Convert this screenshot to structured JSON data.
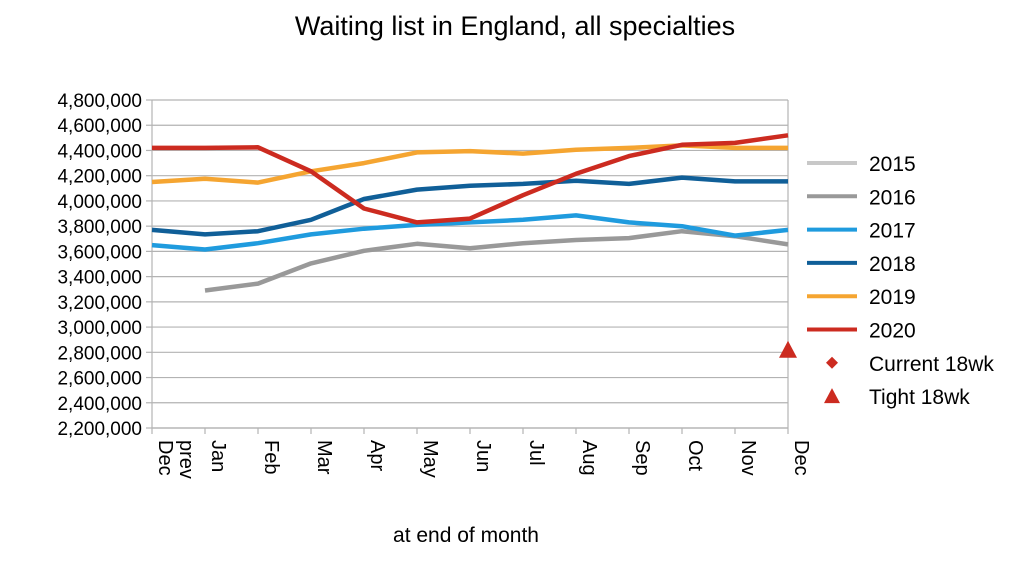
{
  "chart_data": {
    "type": "line",
    "title": "Waiting list in England, all specialties",
    "xlabel": "at end of month",
    "ylabel": "",
    "ylim": [
      2200000,
      4800000
    ],
    "ytick_step": 200000,
    "grid": true,
    "legend_position": "right",
    "categories": [
      "Dec prev",
      "Jan",
      "Feb",
      "Mar",
      "Apr",
      "May",
      "Jun",
      "Jul",
      "Aug",
      "Sep",
      "Oct",
      "Nov",
      "Dec"
    ],
    "series": [
      {
        "name": "2015",
        "color": "#c8c8c8",
        "values": [
          null,
          null,
          null,
          null,
          null,
          null,
          null,
          null,
          null,
          null,
          null,
          null,
          null
        ]
      },
      {
        "name": "2016",
        "color": "#999999",
        "values": [
          null,
          3290000,
          3345000,
          3505000,
          3605000,
          3660000,
          3625000,
          3665000,
          3690000,
          3705000,
          3760000,
          3720000,
          3655000
        ]
      },
      {
        "name": "2017",
        "color": "#1f9bde",
        "values": [
          3650000,
          3615000,
          3665000,
          3735000,
          3780000,
          3810000,
          3830000,
          3850000,
          3885000,
          3830000,
          3800000,
          3725000,
          3770000
        ]
      },
      {
        "name": "2018",
        "color": "#105f98",
        "values": [
          3770000,
          3735000,
          3760000,
          3850000,
          4015000,
          4090000,
          4120000,
          4135000,
          4160000,
          4135000,
          4185000,
          4155000,
          4155000
        ]
      },
      {
        "name": "2019",
        "color": "#f5a531",
        "values": [
          4150000,
          4175000,
          4145000,
          4235000,
          4300000,
          4385000,
          4395000,
          4375000,
          4405000,
          4420000,
          4440000,
          4420000,
          4420000
        ]
      },
      {
        "name": "2020",
        "color": "#cc2b20",
        "values": [
          4420000,
          4420000,
          4425000,
          4235000,
          3940000,
          3830000,
          3860000,
          4045000,
          4215000,
          4355000,
          4445000,
          4460000,
          4520000
        ]
      }
    ],
    "markers": [
      {
        "name": "Current 18wk",
        "shape": "diamond",
        "color": "#cc2b20",
        "category": null,
        "value": null
      },
      {
        "name": "Tight 18wk",
        "shape": "triangle",
        "color": "#cc2b20",
        "category": "Dec",
        "value": 2820000
      }
    ]
  }
}
